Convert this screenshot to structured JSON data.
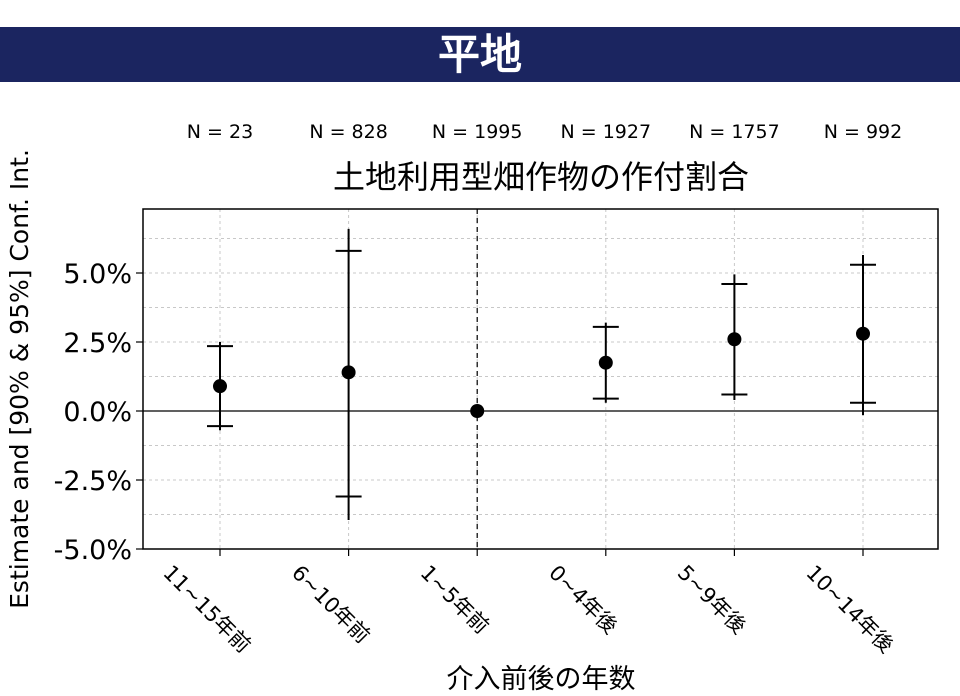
{
  "banner": {
    "title": "平地",
    "color": "#1b2560"
  },
  "chart_data": {
    "type": "scatter",
    "title": "土地利用型畑作物の作付割合",
    "xlabel": "介入前後の年数",
    "ylabel": "Estimate and [90% & 95%] Conf. Int.",
    "categories": [
      "11~15年前",
      "6~10年前",
      "1~5年前",
      "0~4年後",
      "5~9年後",
      "10~14年後"
    ],
    "n_labels": [
      "N = 23",
      "N = 828",
      "N = 1995",
      "N = 1927",
      "N = 1757",
      "N = 992"
    ],
    "yticks": [
      "5.0%",
      "2.5%",
      "0.0%",
      "-2.5%",
      "-5.0%"
    ],
    "ylim": [
      -5.0,
      7.2
    ],
    "reference_line_y": 0,
    "reference_line_x_category": "1~5年前",
    "grid": true,
    "series": [
      {
        "estimate": [
          0.9,
          1.4,
          0.0,
          1.75,
          2.6,
          2.8
        ],
        "ci90_low": [
          -0.55,
          -3.1,
          0.0,
          0.45,
          0.6,
          0.3
        ],
        "ci90_high": [
          2.35,
          5.8,
          0.0,
          3.05,
          4.6,
          5.3
        ],
        "ci95_low": [
          -0.7,
          -3.95,
          0.0,
          0.3,
          0.4,
          -0.15
        ],
        "ci95_high": [
          2.5,
          6.6,
          0.0,
          3.2,
          4.95,
          5.65
        ]
      }
    ]
  }
}
